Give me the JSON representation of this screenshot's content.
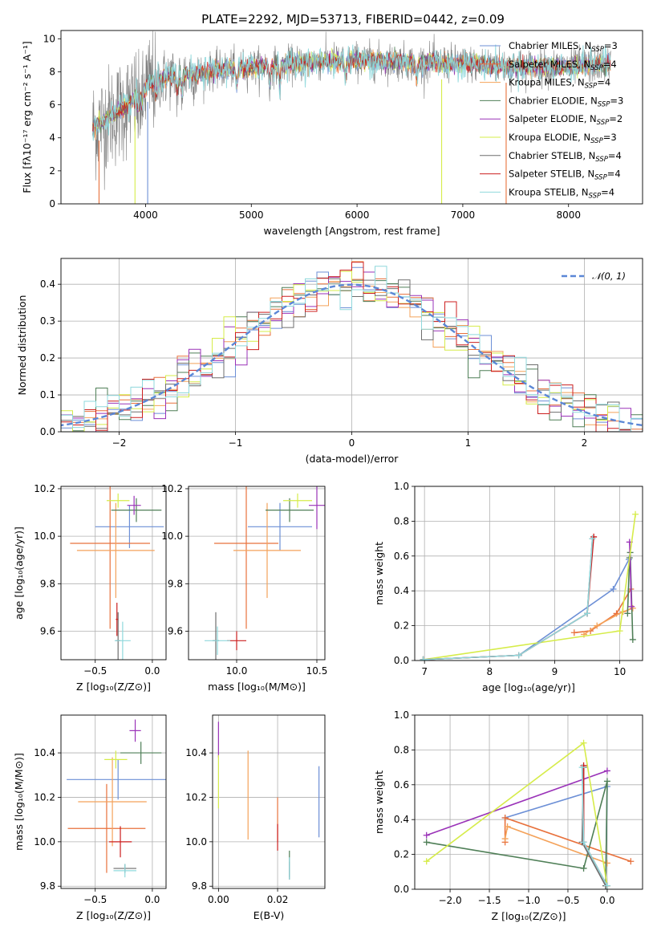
{
  "figure": {
    "title": "PLATE=2292, MJD=53713, FIBERID=0442, z=0.09"
  },
  "series_styles": [
    {
      "name": "Chabrier MILES",
      "nssp": "3",
      "color": "#6c8fd6"
    },
    {
      "name": "Salpeter MILES",
      "nssp": "4",
      "color": "#e8713c"
    },
    {
      "name": "Kroupa MILES",
      "nssp": "4",
      "color": "#f4a25a"
    },
    {
      "name": "Chabrier ELODIE",
      "nssp": "3",
      "color": "#4f7f57"
    },
    {
      "name": "Salpeter ELODIE",
      "nssp": "2",
      "color": "#9a32b8"
    },
    {
      "name": "Kroupa ELODIE",
      "nssp": "3",
      "color": "#d6ec4a"
    },
    {
      "name": "Chabrier STELIB",
      "nssp": "4",
      "color": "#6e6e6e"
    },
    {
      "name": "Salpeter STELIB",
      "nssp": "4",
      "color": "#cc1f1f"
    },
    {
      "name": "Kroupa STELIB",
      "nssp": "4",
      "color": "#8fd8dc"
    }
  ],
  "chart_data": [
    {
      "id": "spectrum",
      "type": "line",
      "xlabel": "wavelength [Angstrom, rest frame]",
      "ylabel": "Flux [fλ10⁻¹⁷ erg cm⁻² s⁻¹ A⁻¹]",
      "xlim": [
        3200,
        8700
      ],
      "ylim": [
        0,
        10.5
      ],
      "xticks": [
        4000,
        5000,
        6000,
        7000,
        8000
      ],
      "yticks": [
        0,
        2,
        4,
        6,
        8,
        10
      ],
      "grid": false,
      "legend": "right",
      "continuum": {
        "x": [
          3500,
          3700,
          3900,
          4000,
          4100,
          4300,
          4500,
          4800,
          5000,
          5300,
          5600,
          6000,
          6500,
          7000,
          7500,
          8000,
          8400
        ],
        "y": [
          4.6,
          5.4,
          6.3,
          7.1,
          7.5,
          7.8,
          7.9,
          8.2,
          8.3,
          8.4,
          8.6,
          8.7,
          8.6,
          8.5,
          8.3,
          8.3,
          8.5
        ]
      }
    },
    {
      "id": "residuals",
      "type": "histogram",
      "xlabel": "(data-model)/error",
      "ylabel": "Normed distribution",
      "xlim": [
        -2.5,
        2.5
      ],
      "ylim": [
        0,
        0.47
      ],
      "xticks": [
        -2,
        -1,
        0,
        1,
        2
      ],
      "yticks": [
        0.0,
        0.1,
        0.2,
        0.3,
        0.4
      ],
      "grid": true,
      "legend": "top-right",
      "reference_curve": {
        "label": "𝒩(0, 1)",
        "mean": 0,
        "sigma": 1,
        "color": "#5b87d6"
      }
    },
    {
      "id": "age-vs-z",
      "type": "errorbar",
      "xlabel": "Z [log₁₀(Z/Z⊙)]",
      "ylabel": "age  [log₁₀(age/yr)]",
      "xlim": [
        -0.8,
        0.12
      ],
      "ylim": [
        9.48,
        10.21
      ],
      "xticks": [
        -0.5,
        0.0
      ],
      "yticks": [
        9.6,
        9.8,
        10.0,
        10.2
      ],
      "grid": true,
      "points": [
        {
          "series": 0,
          "x": -0.2,
          "y": 10.04,
          "xerr": 0.3,
          "yerr": 0.09
        },
        {
          "series": 1,
          "x": -0.37,
          "y": 9.97,
          "xerr": 0.35,
          "yerr": 0.36
        },
        {
          "series": 2,
          "x": -0.32,
          "y": 9.94,
          "xerr": 0.34,
          "yerr": 0.2
        },
        {
          "series": 3,
          "x": -0.14,
          "y": 10.11,
          "xerr": 0.22,
          "yerr": 0.05
        },
        {
          "series": 4,
          "x": -0.16,
          "y": 10.13,
          "xerr": 0.06,
          "yerr": 0.04
        },
        {
          "series": 5,
          "x": -0.3,
          "y": 10.15,
          "xerr": 0.1,
          "yerr": 0.03
        },
        {
          "series": 6,
          "x": -0.3,
          "y": 9.56,
          "xerr": 0.02,
          "yerr": 0.12
        },
        {
          "series": 7,
          "x": -0.31,
          "y": 9.65,
          "xerr": 0.01,
          "yerr": 0.07
        },
        {
          "series": 8,
          "x": -0.26,
          "y": 9.56,
          "xerr": 0.07,
          "yerr": 0.08
        }
      ]
    },
    {
      "id": "age-vs-mass",
      "type": "errorbar",
      "xlabel": "mass [log₁₀(M/M⊙)]",
      "ylabel": "",
      "xlim": [
        9.7,
        10.55
      ],
      "ylim": [
        9.48,
        10.21
      ],
      "xticks": [
        10.0,
        10.5
      ],
      "yticks": [
        9.6,
        9.8,
        10.0,
        10.2
      ],
      "grid": true,
      "points": [
        {
          "series": 0,
          "x": 10.27,
          "y": 10.04,
          "xerr": 0.2,
          "yerr": 0.1
        },
        {
          "series": 1,
          "x": 10.06,
          "y": 9.97,
          "xerr": 0.2,
          "yerr": 0.36
        },
        {
          "series": 2,
          "x": 10.19,
          "y": 9.94,
          "xerr": 0.21,
          "yerr": 0.2
        },
        {
          "series": 3,
          "x": 10.33,
          "y": 10.11,
          "xerr": 0.15,
          "yerr": 0.05
        },
        {
          "series": 4,
          "x": 10.5,
          "y": 10.13,
          "xerr": 0.05,
          "yerr": 0.1
        },
        {
          "series": 5,
          "x": 10.38,
          "y": 10.15,
          "xerr": 0.09,
          "yerr": 0.03
        },
        {
          "series": 6,
          "x": 9.87,
          "y": 9.56,
          "xerr": 0.02,
          "yerr": 0.12
        },
        {
          "series": 7,
          "x": 10.0,
          "y": 9.56,
          "xerr": 0.06,
          "yerr": 0.04
        },
        {
          "series": 8,
          "x": 9.88,
          "y": 9.56,
          "xerr": 0.08,
          "yerr": 0.06
        }
      ]
    },
    {
      "id": "weight-vs-age",
      "type": "line",
      "xlabel": "age  [log₁₀(age/yr)]",
      "ylabel": "mass weight",
      "xlim": [
        6.85,
        10.35
      ],
      "ylim": [
        0,
        1
      ],
      "xticks": [
        7,
        8,
        9,
        10
      ],
      "yticks": [
        0.0,
        0.2,
        0.4,
        0.6,
        0.8,
        1.0
      ],
      "grid": true,
      "series": [
        {
          "series": 0,
          "x": [
            6.98,
            8.45,
            9.9,
            10.14
          ],
          "y": [
            0.005,
            0.03,
            0.41,
            0.58
          ]
        },
        {
          "series": 1,
          "x": [
            9.3,
            9.55,
            9.95,
            10.17
          ],
          "y": [
            0.16,
            0.17,
            0.27,
            0.41
          ]
        },
        {
          "series": 2,
          "x": [
            9.45,
            9.65,
            10.05,
            10.2
          ],
          "y": [
            0.15,
            0.2,
            0.28,
            0.3
          ]
        },
        {
          "series": 3,
          "x": [
            10.12,
            10.15,
            10.16,
            10.2
          ],
          "y": [
            0.27,
            0.59,
            0.62,
            0.12
          ]
        },
        {
          "series": 4,
          "x": [
            10.15,
            10.18
          ],
          "y": [
            0.68,
            0.31
          ]
        },
        {
          "series": 5,
          "x": [
            6.98,
            10.0,
            10.24
          ],
          "y": [
            0.005,
            0.17,
            0.84
          ]
        },
        {
          "series": 6,
          "x": [
            6.98,
            8.45,
            9.5,
            9.58
          ],
          "y": [
            0.005,
            0.03,
            0.27,
            0.7
          ]
        },
        {
          "series": 7,
          "x": [
            6.98,
            8.45,
            9.5,
            9.6
          ],
          "y": [
            0.005,
            0.03,
            0.27,
            0.71
          ]
        },
        {
          "series": 8,
          "x": [
            6.98,
            8.45,
            9.5,
            9.58
          ],
          "y": [
            0.005,
            0.03,
            0.27,
            0.7
          ]
        }
      ]
    },
    {
      "id": "mass-vs-z",
      "type": "errorbar",
      "xlabel": "Z [log₁₀(Z/Z⊙)]",
      "ylabel": "mass [log₁₀(M/M⊙)]",
      "xlim": [
        -0.8,
        0.12
      ],
      "ylim": [
        9.79,
        10.57
      ],
      "xticks": [
        -0.5,
        0.0
      ],
      "yticks": [
        9.8,
        10.0,
        10.2,
        10.4
      ],
      "grid": true,
      "points": [
        {
          "series": 0,
          "x": -0.3,
          "y": 10.28,
          "xerr": 0.45,
          "yerr": 0.09
        },
        {
          "series": 1,
          "x": -0.4,
          "y": 10.06,
          "xerr": 0.34,
          "yerr": 0.2
        },
        {
          "series": 2,
          "x": -0.35,
          "y": 10.18,
          "xerr": 0.3,
          "yerr": 0.2
        },
        {
          "series": 3,
          "x": -0.1,
          "y": 10.4,
          "xerr": 0.18,
          "yerr": 0.05
        },
        {
          "series": 4,
          "x": -0.15,
          "y": 10.5,
          "xerr": 0.05,
          "yerr": 0.05
        },
        {
          "series": 5,
          "x": -0.32,
          "y": 10.37,
          "xerr": 0.1,
          "yerr": 0.04
        },
        {
          "series": 6,
          "x": -0.24,
          "y": 9.88,
          "xerr": 0.1,
          "yerr": 0.02
        },
        {
          "series": 7,
          "x": -0.28,
          "y": 10.0,
          "xerr": 0.1,
          "yerr": 0.07
        },
        {
          "series": 8,
          "x": -0.24,
          "y": 9.87,
          "xerr": 0.1,
          "yerr": 0.03
        }
      ]
    },
    {
      "id": "mass-vs-ebv",
      "type": "errorbar",
      "xlabel": "E(B-V)",
      "ylabel": "",
      "xlim": [
        -0.002,
        0.036
      ],
      "ylim": [
        9.79,
        10.57
      ],
      "xticks": [
        0.0,
        0.02
      ],
      "yticks": [
        9.8,
        10.0,
        10.2,
        10.4
      ],
      "grid": true,
      "points": [
        {
          "series": 0,
          "x": 0.034,
          "y": 10.18,
          "xerr": 0,
          "yerr": 0.16
        },
        {
          "series": 1,
          "x": 0.02,
          "y": 10.1,
          "xerr": 0,
          "yerr": 0.1
        },
        {
          "series": 2,
          "x": 0.01,
          "y": 10.21,
          "xerr": 0,
          "yerr": 0.2
        },
        {
          "series": 3,
          "x": 0.024,
          "y": 9.9,
          "xerr": 0,
          "yerr": 0.06
        },
        {
          "series": 4,
          "x": 0.0,
          "y": 10.46,
          "xerr": 0,
          "yerr": 0.08
        },
        {
          "series": 5,
          "x": 0.0,
          "y": 10.27,
          "xerr": 0,
          "yerr": 0.12
        },
        {
          "series": 6,
          "x": 0.024,
          "y": 9.87,
          "xerr": 0,
          "yerr": 0.04
        },
        {
          "series": 7,
          "x": 0.02,
          "y": 10.02,
          "xerr": 0,
          "yerr": 0.06
        },
        {
          "series": 8,
          "x": 0.024,
          "y": 9.88,
          "xerr": 0,
          "yerr": 0.05
        }
      ]
    },
    {
      "id": "weight-vs-z",
      "type": "line",
      "xlabel": "Z [log₁₀(Z/Z⊙)]",
      "ylabel": "mass weight",
      "xlim": [
        -2.45,
        0.45
      ],
      "ylim": [
        0,
        1
      ],
      "xticks": [
        -2.0,
        -1.5,
        -1.0,
        -0.5,
        0.0
      ],
      "yticks": [
        0.0,
        0.2,
        0.4,
        0.6,
        0.8,
        1.0
      ],
      "grid": true,
      "series": [
        {
          "series": 0,
          "x": [
            -1.3,
            0.0,
            -0.02
          ],
          "y": [
            0.41,
            0.59,
            0.02
          ]
        },
        {
          "series": 1,
          "x": [
            -1.3,
            -1.3,
            0.3
          ],
          "y": [
            0.27,
            0.41,
            0.16
          ]
        },
        {
          "series": 2,
          "x": [
            -1.3,
            -1.27,
            0.0
          ],
          "y": [
            0.29,
            0.36,
            0.15
          ]
        },
        {
          "series": 3,
          "x": [
            -2.3,
            -0.3,
            0.0,
            -0.02
          ],
          "y": [
            0.27,
            0.12,
            0.62,
            0.02
          ]
        },
        {
          "series": 4,
          "x": [
            -2.3,
            0.0
          ],
          "y": [
            0.31,
            0.68
          ]
        },
        {
          "series": 5,
          "x": [
            -2.3,
            -0.3,
            0.0
          ],
          "y": [
            0.16,
            0.84,
            0.02
          ]
        },
        {
          "series": 6,
          "x": [
            -0.3,
            -0.32,
            -0.02
          ],
          "y": [
            0.7,
            0.27,
            0.02
          ]
        },
        {
          "series": 7,
          "x": [
            -0.3,
            -0.3,
            0.0
          ],
          "y": [
            0.71,
            0.27,
            0.02
          ]
        },
        {
          "series": 8,
          "x": [
            -0.32,
            -0.3,
            0.0
          ],
          "y": [
            0.7,
            0.27,
            0.02
          ]
        }
      ]
    }
  ]
}
